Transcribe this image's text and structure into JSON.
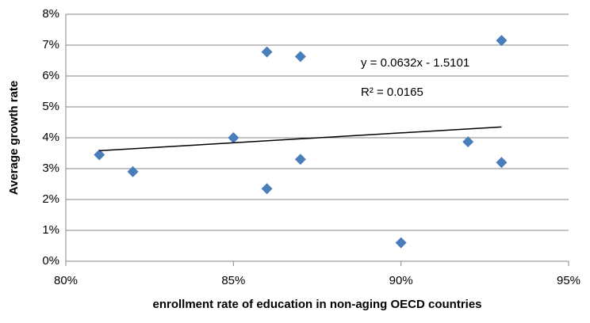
{
  "chart_data": {
    "type": "scatter",
    "x_label": "enrollment rate of education in non-aging OECD countries",
    "y_label": "Average growth rate",
    "annotations": [
      "y = 0.0632x - 1.5101",
      "R² = 0.0165"
    ],
    "xlim": [
      80,
      95
    ],
    "xticks": [
      {
        "value": 80,
        "label": "80%"
      },
      {
        "value": 85,
        "label": "85%"
      },
      {
        "value": 90,
        "label": "90%"
      },
      {
        "value": 95,
        "label": "95%"
      }
    ],
    "ylim": [
      0,
      8
    ],
    "yticks": [
      {
        "value": 0,
        "label": "0%"
      },
      {
        "value": 1,
        "label": "1%"
      },
      {
        "value": 2,
        "label": "2%"
      },
      {
        "value": 3,
        "label": "3%"
      },
      {
        "value": 4,
        "label": "4%"
      },
      {
        "value": 5,
        "label": "5%"
      },
      {
        "value": 6,
        "label": "6%"
      },
      {
        "value": 7,
        "label": "7%"
      },
      {
        "value": 8,
        "label": "8%"
      }
    ],
    "grid": true,
    "color": "#4a7ebb",
    "x": [
      81,
      82,
      85,
      86,
      86,
      87,
      87,
      90,
      92,
      93,
      93
    ],
    "values": [
      3.45,
      2.9,
      4.0,
      6.78,
      2.35,
      6.63,
      3.3,
      0.6,
      3.87,
      7.15,
      3.2
    ],
    "trendline": {
      "color": "#000000",
      "x": [
        81,
        93
      ],
      "values": [
        3.58,
        4.35
      ]
    }
  }
}
